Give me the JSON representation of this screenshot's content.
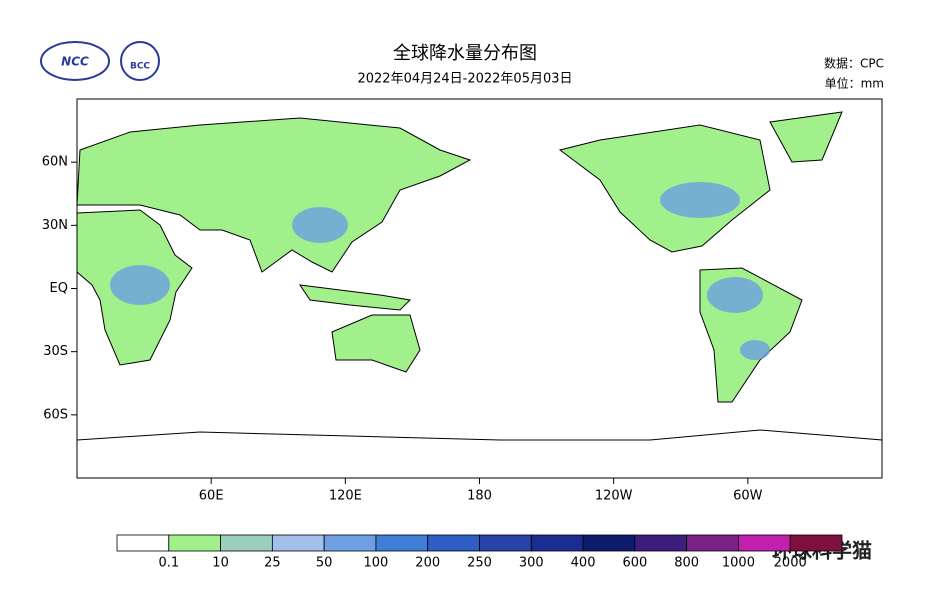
{
  "header": {
    "title": "全球降水量分布图",
    "period": "2022年04月24日-2022年05月03日",
    "source": "数据：CPC",
    "unit": "单位：mm",
    "logos": [
      "NCC",
      "BCC"
    ]
  },
  "map": {
    "lonlim": [
      0,
      360
    ],
    "latlim": [
      -90,
      90
    ],
    "lon_ticks": [
      {
        "value": 60,
        "label": "60E"
      },
      {
        "value": 120,
        "label": "120E"
      },
      {
        "value": 180,
        "label": "180"
      },
      {
        "value": 240,
        "label": "120W"
      },
      {
        "value": 300,
        "label": "60W"
      }
    ],
    "lat_ticks": [
      {
        "value": 60,
        "label": "60N"
      },
      {
        "value": 30,
        "label": "30N"
      },
      {
        "value": 0,
        "label": "EQ"
      },
      {
        "value": -30,
        "label": "30S"
      },
      {
        "value": -60,
        "label": "60S"
      }
    ]
  },
  "legend": {
    "colors": [
      "#ffffff",
      "#a2f08c",
      "#9ccfc0",
      "#a2c0ec",
      "#6d9fe2",
      "#3f7ed9",
      "#2e5ec6",
      "#2742a8",
      "#1b2d90",
      "#0e1a6c",
      "#3c1f7c",
      "#7a2285",
      "#c11fae",
      "#80103f"
    ],
    "labels": [
      0.1,
      10,
      25,
      50,
      100,
      200,
      250,
      300,
      400,
      600,
      800,
      1000,
      2000
    ]
  },
  "watermark": "环球科学猫"
}
